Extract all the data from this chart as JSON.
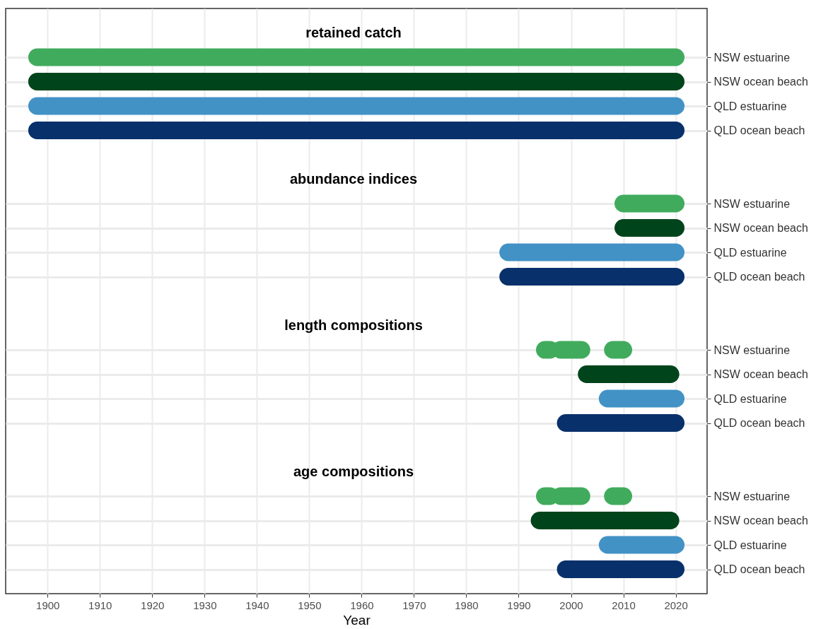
{
  "chart_data": {
    "type": "bar",
    "orientation": "horizontal",
    "xlabel": "Year",
    "categories": [
      null,
      "NSW estuarine",
      "NSW ocean beach",
      "QLD estuarine",
      "QLD ocean beach",
      null,
      null,
      "NSW estuarine",
      "NSW ocean beach",
      "QLD estuarine",
      "QLD ocean beach",
      null,
      null,
      "NSW estuarine",
      "NSW ocean beach",
      "QLD estuarine",
      "QLD ocean beach",
      null,
      null,
      "NSW estuarine",
      "NSW ocean beach",
      "QLD estuarine",
      "QLD ocean beach"
    ],
    "annotations": [
      "retained catch",
      "abundance indices",
      "length compositions",
      "age compositions"
    ],
    "series": [
      {
        "base": [
          null,
          1898,
          1898,
          1898,
          1898,
          null,
          null,
          2010,
          2010,
          1988,
          1988,
          null,
          null,
          1995,
          2003,
          2007,
          1999,
          null,
          null,
          1995,
          1994,
          2007,
          1999
        ],
        "values": [
          null,
          122,
          122,
          122,
          122,
          null,
          null,
          10,
          10,
          32,
          32,
          null,
          null,
          1,
          16,
          13,
          21,
          null,
          null,
          1,
          25,
          13,
          21
        ],
        "colors": [
          null,
          "#41ab5d",
          "#00441b",
          "#4292c6",
          "#08306b",
          null,
          null,
          "#41ab5d",
          "#00441b",
          "#4292c6",
          "#08306b",
          null,
          null,
          "#41ab5d",
          "#00441b",
          "#4292c6",
          "#08306b",
          null,
          null,
          "#41ab5d",
          "#00441b",
          "#4292c6",
          "#08306b"
        ]
      },
      {
        "base": [
          null,
          null,
          null,
          null,
          null,
          null,
          null,
          null,
          null,
          null,
          null,
          null,
          null,
          1998,
          null,
          null,
          null,
          null,
          null,
          1998,
          null,
          null,
          null
        ],
        "values": [
          null,
          null,
          null,
          null,
          null,
          null,
          null,
          null,
          null,
          null,
          null,
          null,
          null,
          4,
          null,
          null,
          null,
          null,
          null,
          4,
          null,
          null,
          null
        ],
        "color": "#41ab5d"
      },
      {
        "base": [
          null,
          null,
          null,
          null,
          null,
          null,
          null,
          null,
          null,
          null,
          null,
          null,
          null,
          2008,
          null,
          null,
          null,
          null,
          null,
          2008,
          null,
          null,
          null
        ],
        "values": [
          null,
          null,
          null,
          null,
          null,
          null,
          null,
          null,
          null,
          null,
          null,
          null,
          null,
          2,
          null,
          null,
          null,
          null,
          null,
          2,
          null,
          null,
          null
        ],
        "color": "#41ab5d"
      }
    ],
    "xlim": [
      1892,
      2026
    ],
    "xticks": [
      1900,
      1910,
      1920,
      1930,
      1940,
      1950,
      1960,
      1970,
      1980,
      1990,
      2000,
      2010,
      2020
    ],
    "grid": true
  }
}
